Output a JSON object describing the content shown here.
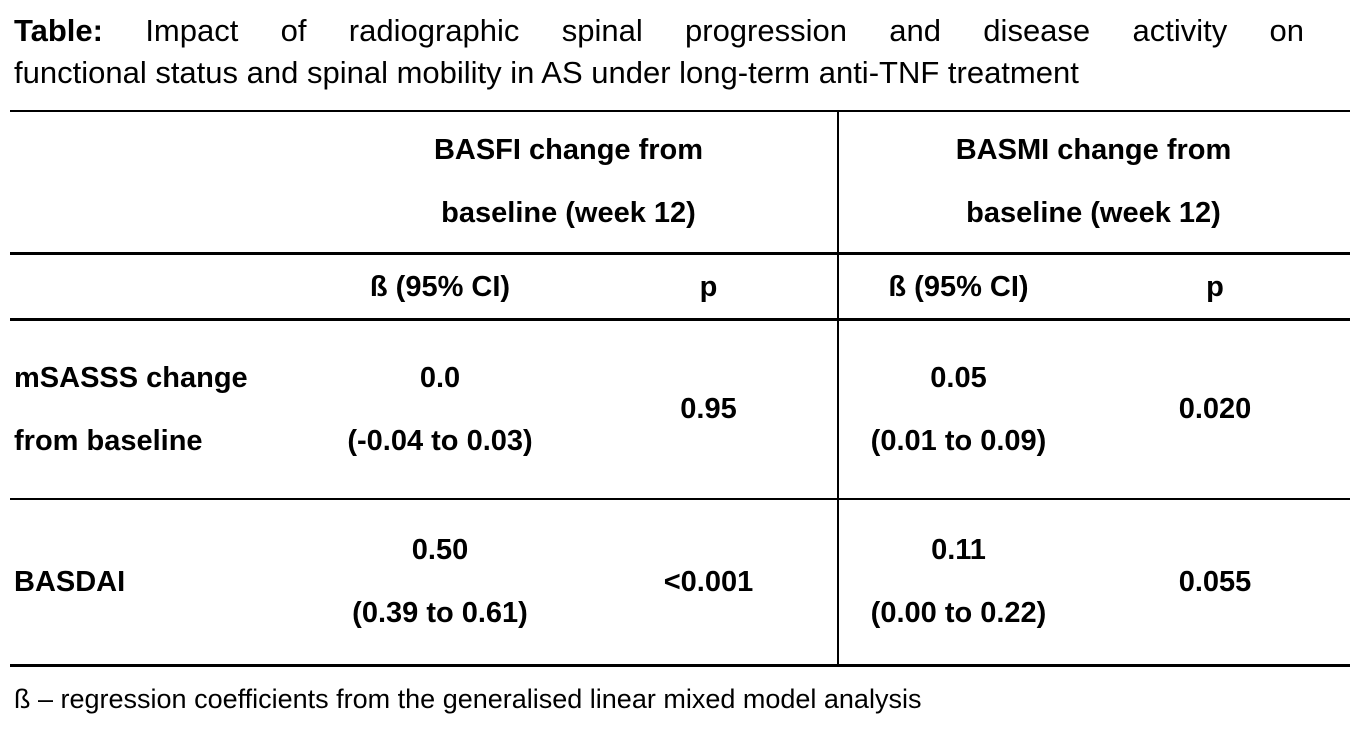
{
  "palette": {
    "text": "#000000",
    "background": "#ffffff",
    "rules": "#000000"
  },
  "title": {
    "label": "Table:",
    "line1": "Impact of radiographic spinal progression and disease activity on",
    "line2": "functional status and spinal mobility in AS under long-term anti-TNF treatment"
  },
  "table": {
    "groups": [
      {
        "name": "BASFI",
        "line1": "BASFI change from",
        "line2": "baseline (week 12)",
        "beta_header": "ß (95% CI)",
        "p_header": "p"
      },
      {
        "name": "BASMI",
        "line1": "BASMI change from",
        "line2": "baseline (week 12)",
        "beta_header": "ß (95% CI)",
        "p_header": "p"
      }
    ],
    "rows": [
      {
        "label_line1": "mSASSS change",
        "label_line2": "from baseline",
        "basfi": {
          "beta": "0.0",
          "ci": "(-0.04 to 0.03)",
          "p": "0.95"
        },
        "basmi": {
          "beta": "0.05",
          "ci": "(0.01 to 0.09)",
          "p": "0.020"
        }
      },
      {
        "label": "BASDAI",
        "basfi": {
          "beta": "0.50",
          "ci": "(0.39 to 0.61)",
          "p": "<0.001"
        },
        "basmi": {
          "beta": "0.11",
          "ci": "(0.00 to 0.22)",
          "p": "0.055"
        }
      }
    ],
    "footnote": "ß – regression coefficients from the generalised linear mixed model analysis"
  }
}
